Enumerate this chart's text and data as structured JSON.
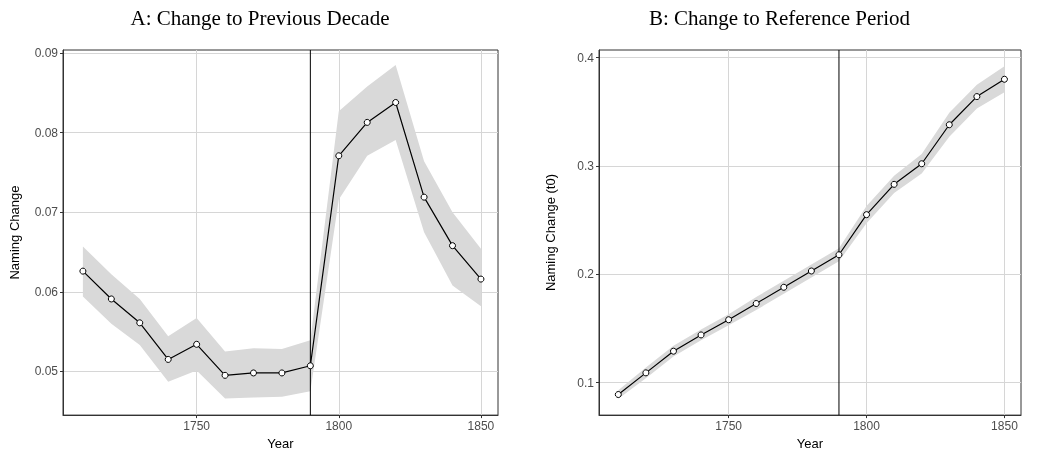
{
  "chart_data": [
    {
      "type": "line",
      "title": "A: Change to Previous Decade",
      "xlabel": "Year",
      "ylabel": "Naming Change",
      "x": [
        1710,
        1720,
        1730,
        1740,
        1750,
        1760,
        1770,
        1780,
        1790,
        1800,
        1810,
        1820,
        1830,
        1840,
        1850
      ],
      "series": [
        {
          "color": "#000000",
          "values": [
            0.0626,
            0.0591,
            0.0561,
            0.0515,
            0.0534,
            0.0495,
            0.0498,
            0.0498,
            0.0507,
            0.0771,
            0.0813,
            0.0838,
            0.0719,
            0.0658,
            0.0616
          ],
          "lower": [
            0.0594,
            0.056,
            0.0533,
            0.0487,
            0.0501,
            0.0466,
            0.0467,
            0.0468,
            0.0475,
            0.0716,
            0.0771,
            0.0791,
            0.0675,
            0.0608,
            0.0582
          ],
          "upper": [
            0.0657,
            0.0622,
            0.0591,
            0.0544,
            0.0567,
            0.0525,
            0.0529,
            0.0528,
            0.0539,
            0.0827,
            0.0858,
            0.0885,
            0.0764,
            0.07,
            0.0654
          ]
        }
      ],
      "xlim": [
        1703,
        1856
      ],
      "ylim": [
        0.0445,
        0.0904
      ],
      "xticks": [
        1750,
        1800,
        1850
      ],
      "yticks": [
        0.05,
        0.06,
        0.07,
        0.08,
        0.09
      ],
      "grid": true,
      "marker": "circle",
      "line_style": "solid",
      "ref_lines": [
        {
          "axis": "x",
          "value": 1790,
          "color": "#000000"
        }
      ]
    },
    {
      "type": "line",
      "title": "B: Change to Reference Period",
      "xlabel": "Year",
      "ylabel": "Naming Change (t0)",
      "x": [
        1710,
        1720,
        1730,
        1740,
        1750,
        1760,
        1770,
        1780,
        1790,
        1800,
        1810,
        1820,
        1830,
        1840,
        1850
      ],
      "series": [
        {
          "color": "#000000",
          "values": [
            0.089,
            0.109,
            0.129,
            0.144,
            0.158,
            0.173,
            0.188,
            0.203,
            0.218,
            0.255,
            0.283,
            0.302,
            0.338,
            0.364,
            0.38
          ],
          "lower": [
            0.085,
            0.104,
            0.124,
            0.139,
            0.153,
            0.167,
            0.182,
            0.197,
            0.212,
            0.247,
            0.275,
            0.293,
            0.327,
            0.353,
            0.368
          ],
          "upper": [
            0.093,
            0.114,
            0.134,
            0.149,
            0.163,
            0.179,
            0.194,
            0.209,
            0.224,
            0.263,
            0.291,
            0.311,
            0.349,
            0.375,
            0.392
          ]
        }
      ],
      "xlim": [
        1703,
        1856
      ],
      "ylim": [
        0.07,
        0.407
      ],
      "xticks": [
        1750,
        1800,
        1850
      ],
      "yticks": [
        0.1,
        0.2,
        0.3,
        0.4
      ],
      "grid": true,
      "marker": "circle",
      "line_style": "solid",
      "ref_lines": [
        {
          "axis": "x",
          "value": 1790,
          "color": "#000000"
        }
      ]
    }
  ]
}
